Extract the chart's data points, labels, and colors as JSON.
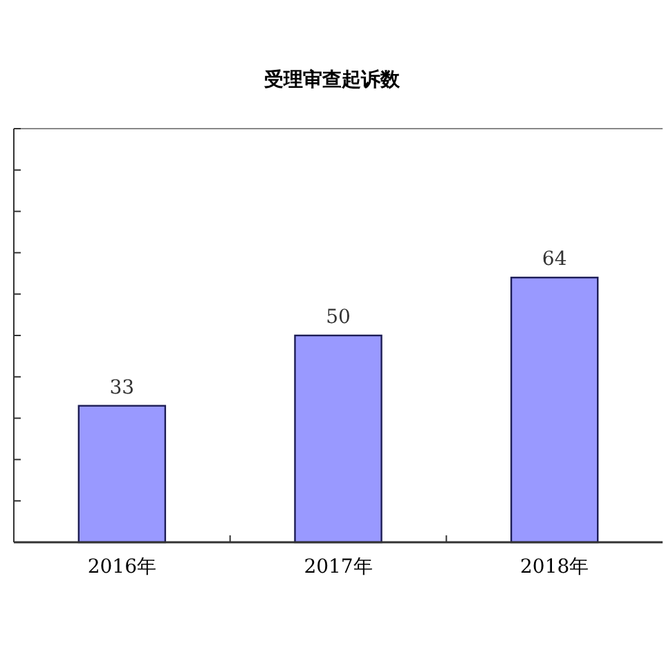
{
  "chart_data": {
    "type": "bar",
    "title": "受理审查起诉数",
    "categories": [
      "2016年",
      "2017年",
      "2018年"
    ],
    "values": [
      33,
      50,
      64
    ],
    "color": "#9999ff",
    "ylim": [
      0,
      100
    ],
    "yticks": [
      {
        "value": 0,
        "label": null
      },
      {
        "value": 10,
        "label": null
      },
      {
        "value": 20,
        "label": null
      },
      {
        "value": 30,
        "label": null
      },
      {
        "value": 40,
        "label": null
      },
      {
        "value": 50,
        "label": null
      },
      {
        "value": 60,
        "label": null
      },
      {
        "value": 70,
        "label": null
      },
      {
        "value": 80,
        "label": null
      },
      {
        "value": 90,
        "label": null
      },
      {
        "value": 100,
        "label": null
      }
    ],
    "tick_labels": "x",
    "data_labels": true
  }
}
